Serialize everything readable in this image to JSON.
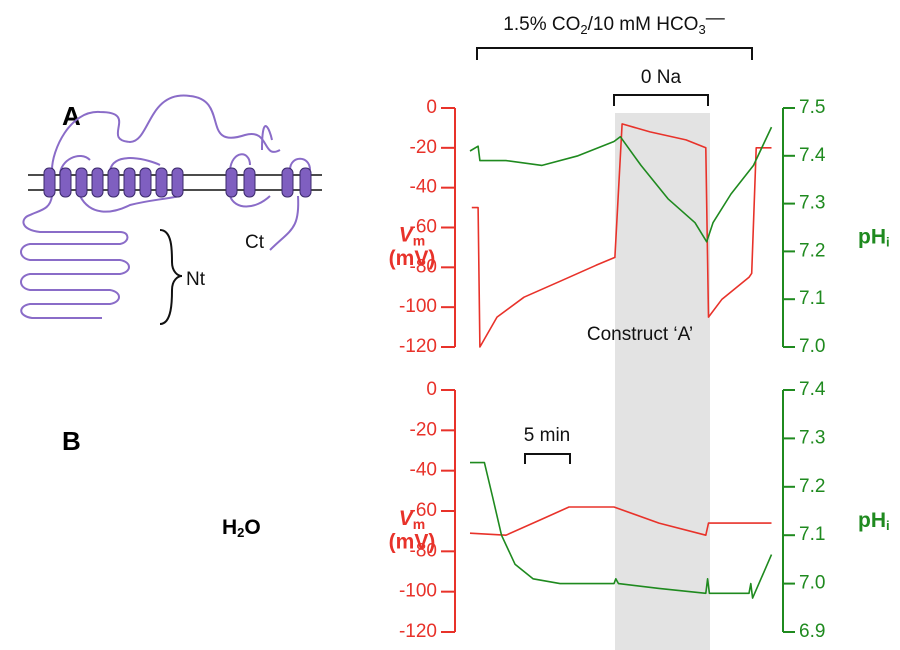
{
  "panel_labels": [
    "A",
    "B"
  ],
  "diagram": {
    "nt": "Nt",
    "ct": "Ct",
    "condition": [
      "H",
      "2",
      "O"
    ]
  },
  "annotations": {
    "treatment": [
      "1.5% CO",
      "2",
      "/10 mM HCO",
      "3",
      "—"
    ],
    "zero_na": "0 Na",
    "construct": "Construct ‘A’",
    "scale_bar": "5 min"
  },
  "chart_data": [
    {
      "type": "line",
      "xlim": [
        0,
        34
      ],
      "ylim": [
        -120,
        0
      ],
      "yticks": [
        0,
        -20,
        -40,
        -60,
        -80,
        -100,
        -120
      ],
      "y2lim": [
        7.0,
        7.5
      ],
      "y2ticks": [
        {
          "value": 7,
          "label": "7.0"
        },
        7.1,
        7.2,
        7.3,
        7.4,
        7.5
      ],
      "ylabel": {
        "symbol": "V",
        "subscript": "m",
        "unit": "(mV)"
      },
      "y2label": {
        "symbol": "pH",
        "subscript": "i"
      },
      "series": [
        {
          "color": "#e8322a",
          "x": [
            0.2,
            0.9,
            1.1,
            3,
            6,
            10,
            14,
            16.1,
            16.9,
            20,
            24,
            26.2,
            26.5,
            28,
            31,
            31.3,
            31.8,
            33.5
          ],
          "values": [
            -50,
            -50,
            -120,
            -105,
            -95,
            -87,
            -79,
            -75,
            -8,
            -12,
            -16,
            -20,
            -105,
            -96,
            -85,
            -83,
            -20,
            -20
          ]
        },
        {
          "color": "#1f8a1f",
          "axis": "y2",
          "x": [
            0,
            0.9,
            1.1,
            4,
            8,
            12,
            16,
            16.7,
            19,
            22,
            25,
            26.3,
            27,
            29,
            31.5,
            33.5
          ],
          "values": [
            7.41,
            7.42,
            7.39,
            7.39,
            7.38,
            7.4,
            7.43,
            7.44,
            7.38,
            7.31,
            7.26,
            7.22,
            7.26,
            7.32,
            7.38,
            7.46
          ]
        }
      ]
    },
    {
      "type": "line",
      "xlim": [
        0,
        34
      ],
      "ylim": [
        -120,
        0
      ],
      "yticks": [
        0,
        -20,
        -40,
        -60,
        -80,
        -100,
        -120
      ],
      "y2lim": [
        6.9,
        7.4
      ],
      "y2ticks": [
        6.9,
        {
          "value": 7,
          "label": "7.0"
        },
        7.1,
        7.2,
        7.3,
        7.4
      ],
      "ylabel": {
        "symbol": "V",
        "subscript": "m",
        "unit": "(mV)"
      },
      "y2label": {
        "symbol": "pH",
        "subscript": "i"
      },
      "series": [
        {
          "color": "#e8322a",
          "x": [
            0,
            4,
            8,
            11,
            16,
            21,
            26.2,
            26.5,
            33.5
          ],
          "values": [
            -71,
            -72,
            -64,
            -58,
            -58,
            -66,
            -72,
            -66,
            -66
          ]
        },
        {
          "color": "#1f8a1f",
          "axis": "y2",
          "x": [
            0,
            1.6,
            2.5,
            3.5,
            5,
            7,
            10,
            16,
            16.2,
            16.5,
            21,
            26.2,
            26.4,
            26.6,
            31,
            31.2,
            31.4,
            33.5
          ],
          "values": [
            7.25,
            7.25,
            7.18,
            7.1,
            7.04,
            7.01,
            7.0,
            7.0,
            7.01,
            7.0,
            6.99,
            6.98,
            7.01,
            6.98,
            6.98,
            7.0,
            6.97,
            7.06
          ]
        }
      ]
    }
  ]
}
